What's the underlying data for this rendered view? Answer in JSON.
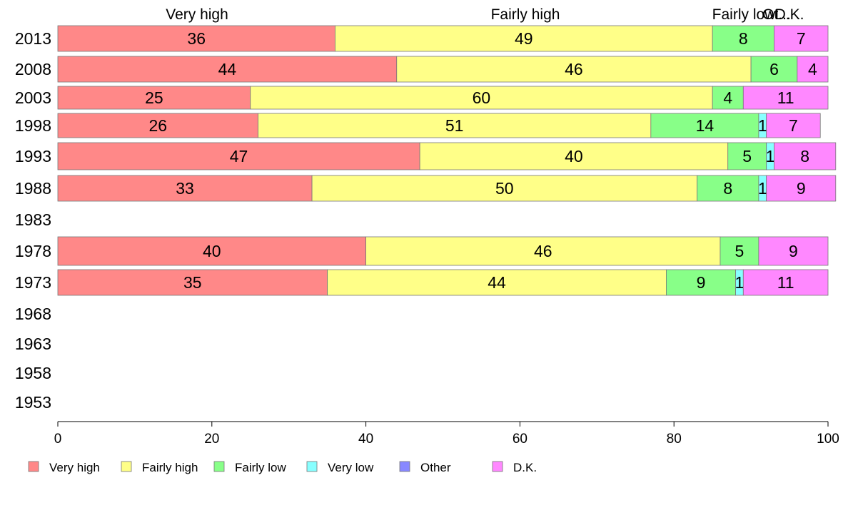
{
  "chart_data": {
    "type": "bar",
    "orientation": "horizontal",
    "stacked": true,
    "categories": [
      "2013",
      "2008",
      "2003",
      "1998",
      "1993",
      "1988",
      "1983",
      "1978",
      "1973",
      "1968",
      "1963",
      "1958",
      "1953"
    ],
    "series": [
      {
        "name": "Very high",
        "color": "#FF8888",
        "values": [
          36,
          44,
          25,
          26,
          47,
          33,
          null,
          40,
          35,
          null,
          null,
          null,
          null
        ]
      },
      {
        "name": "Fairly high",
        "color": "#FFFF88",
        "values": [
          49,
          46,
          60,
          51,
          40,
          50,
          null,
          46,
          44,
          null,
          null,
          null,
          null
        ]
      },
      {
        "name": "Fairly low",
        "color": "#88FF88",
        "values": [
          8,
          6,
          4,
          14,
          5,
          8,
          null,
          5,
          9,
          null,
          null,
          null,
          null
        ]
      },
      {
        "name": "Very low",
        "color": "#88FFFF",
        "values": [
          0,
          0,
          0,
          1,
          1,
          1,
          null,
          0,
          1,
          null,
          null,
          null,
          null
        ]
      },
      {
        "name": "Other",
        "color": "#8888FF",
        "values": [
          0,
          0,
          0,
          0,
          0,
          0,
          null,
          0,
          0,
          null,
          null,
          null,
          null
        ]
      },
      {
        "name": "D.K.",
        "color": "#FF88FF",
        "values": [
          7,
          4,
          11,
          7,
          8,
          9,
          null,
          9,
          11,
          null,
          null,
          null,
          null
        ]
      }
    ],
    "top_labels": [
      "Very high",
      "Fairly high",
      "Fairly low",
      "Ot...",
      "D.K."
    ],
    "xlim": [
      0,
      100
    ],
    "xticks": [
      0,
      20,
      40,
      60,
      80,
      100
    ],
    "legend_position": "bottom-left",
    "grid": false
  }
}
